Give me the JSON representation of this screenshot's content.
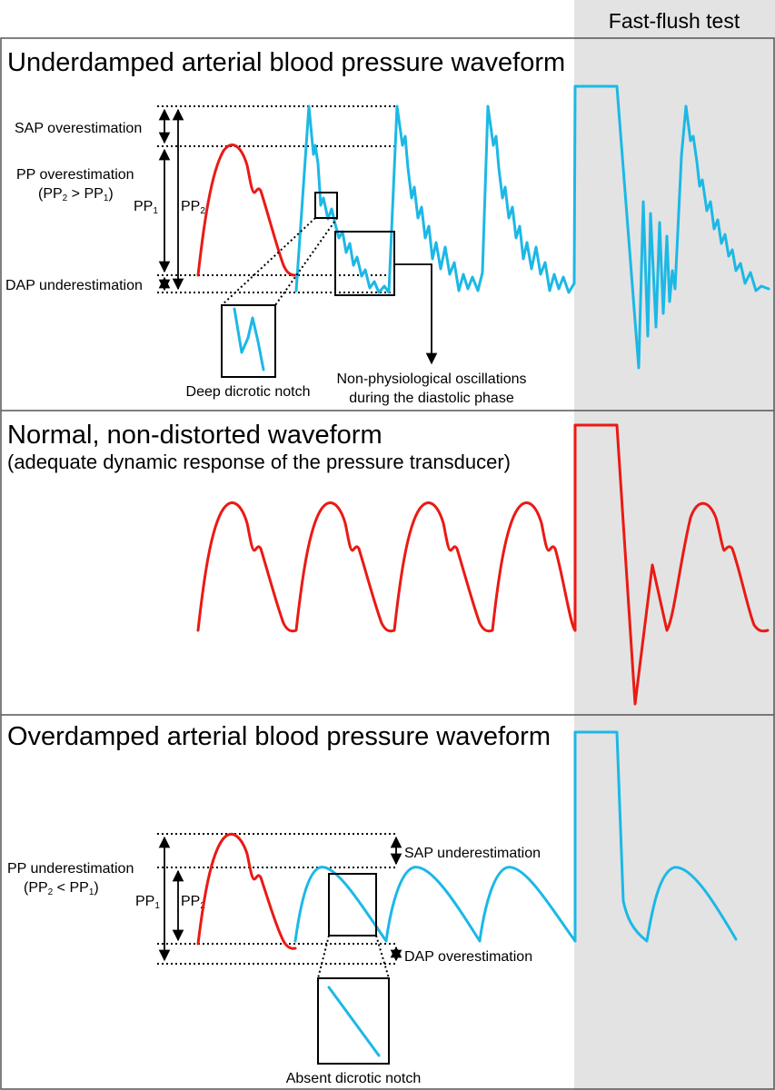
{
  "header": {
    "fast_flush_label": "Fast-flush test"
  },
  "panels": {
    "underdamped": {
      "title": "Underdamped arterial blood pressure waveform",
      "sap_label": "SAP overestimation",
      "pp_label_line1": "PP overestimation",
      "pp_label_line2": "(PP",
      "pp_label_line2_b": " > PP",
      "pp_label_line2_c": ")",
      "sub_2": "2",
      "sub_1": "1",
      "pp1": "PP",
      "pp2": "PP",
      "dap_label": "DAP underestimation",
      "notch_label": "Deep dicrotic notch",
      "osc_label_line1": "Non-physiological oscillations",
      "osc_label_line2": "during the diastolic phase"
    },
    "normal": {
      "title": "Normal, non-distorted waveform",
      "subtitle": "(adequate dynamic response of the pressure transducer)"
    },
    "overdamped": {
      "title": "Overdamped arterial blood pressure waveform",
      "pp_label_line1": "PP underestimation",
      "pp_label_line2": "(PP",
      "pp_label_line2_b": " < PP",
      "pp_label_line2_c": ")",
      "sub_2": "2",
      "sub_1": "1",
      "pp1": "PP",
      "pp2": "PP",
      "sap_label": "SAP underestimation",
      "dap_label": "DAP overestimation",
      "notch_label": "Absent dicrotic notch"
    }
  },
  "colors": {
    "normal_wave": "#ea1a14",
    "damped_wave": "#1cb8e6",
    "fast_flush_bg": "#e3e3e3"
  }
}
